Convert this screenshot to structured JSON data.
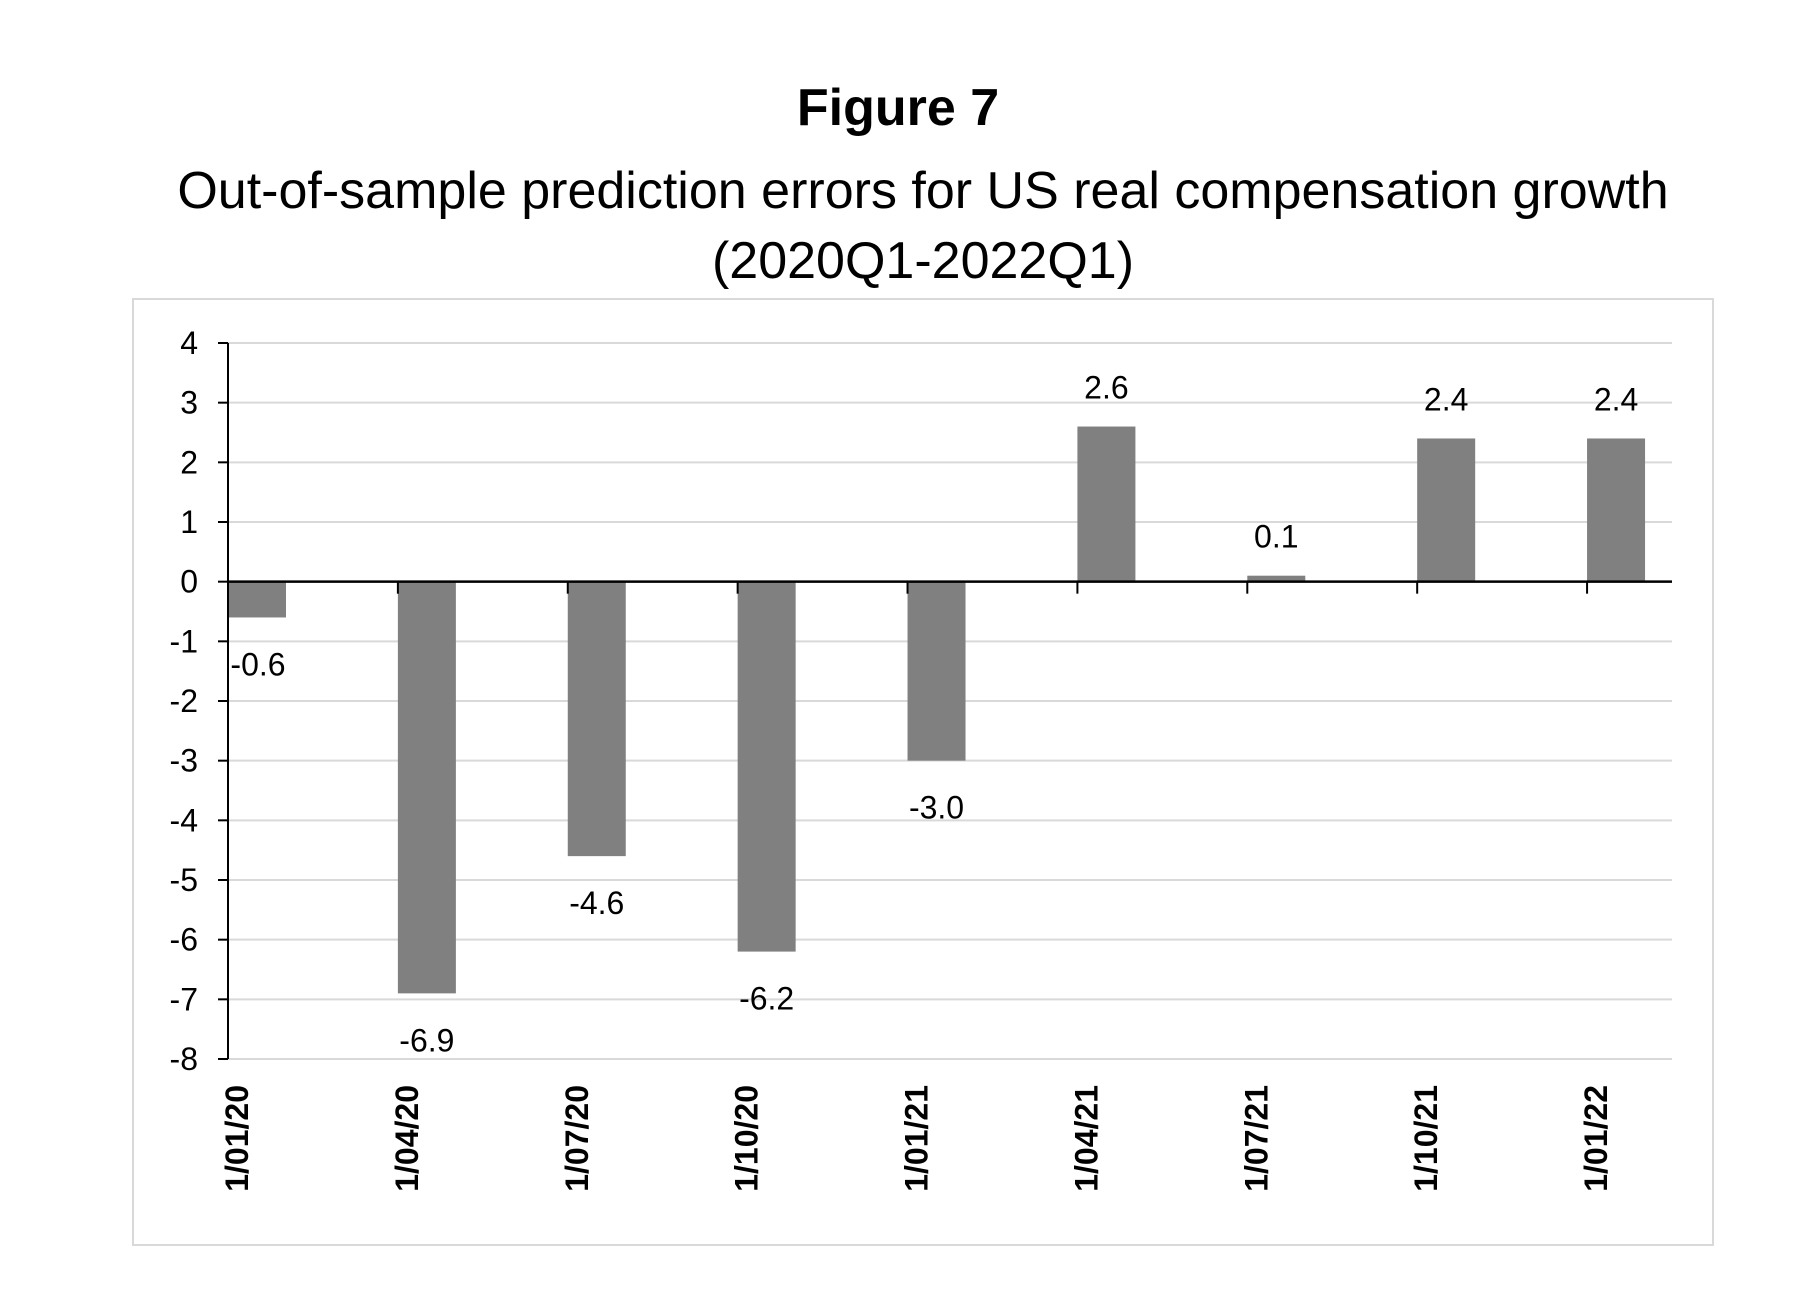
{
  "figure": {
    "label": "Figure 7",
    "title_line1": "Out-of-sample prediction errors for US real compensation growth",
    "title_line2": "(2020Q1-2022Q1)"
  },
  "chart_data": {
    "type": "bar",
    "title": "Out-of-sample prediction errors for US real compensation growth (2020Q1-2022Q1)",
    "xlabel": "",
    "ylabel": "",
    "ylim": [
      -8,
      4
    ],
    "yticks": [
      4,
      3,
      2,
      1,
      0,
      -1,
      -2,
      -3,
      -4,
      -5,
      -6,
      -7,
      -8
    ],
    "grid": true,
    "legend": "none",
    "bar_color": "#808080",
    "categories": [
      "1/01/20",
      "1/04/20",
      "1/07/20",
      "1/10/20",
      "1/01/21",
      "1/04/21",
      "1/07/21",
      "1/10/21",
      "1/01/22"
    ],
    "values": [
      -0.6,
      -6.9,
      -4.6,
      -6.2,
      -3.0,
      2.6,
      0.1,
      2.4,
      2.4
    ],
    "data_labels": [
      "-0.6",
      "-6.9",
      "-4.6",
      "-6.2",
      "-3.0",
      "2.6",
      "0.1",
      "2.4",
      "2.4"
    ]
  }
}
